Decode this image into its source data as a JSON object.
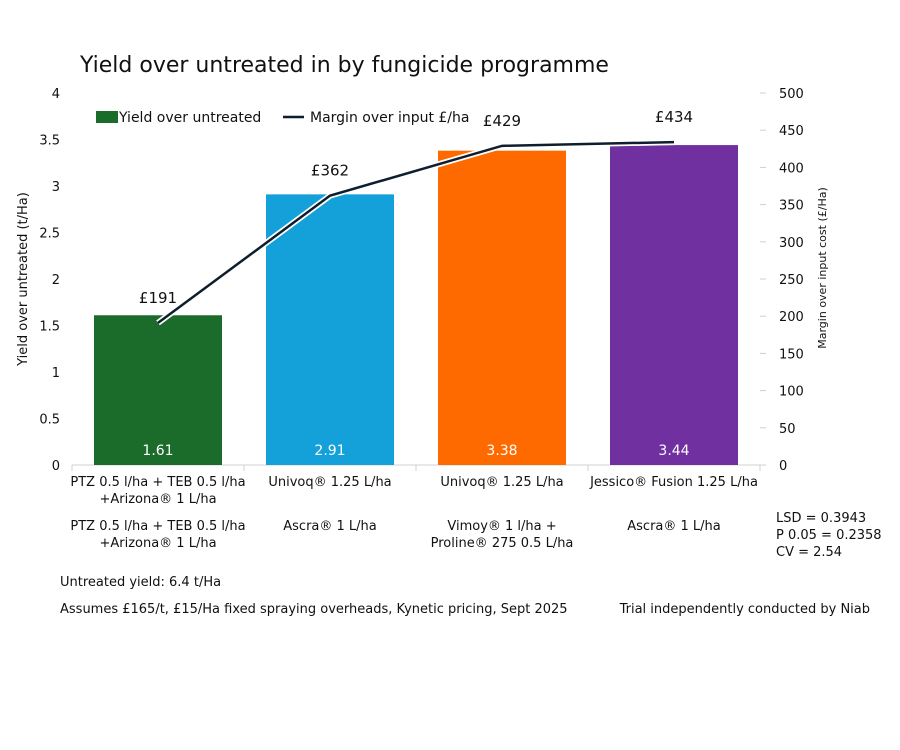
{
  "chart_data": {
    "type": "bar+line",
    "title": "Yield over untreated in by fungicide programme",
    "ylabel": "Yield over untreated (t/Ha)",
    "y2label": "Margin over input cost (£/Ha)",
    "ylim": [
      0,
      4
    ],
    "y2lim": [
      0,
      500
    ],
    "yticks": [
      "0",
      "0.5",
      "1",
      "1.5",
      "2",
      "2.5",
      "3",
      "3.5",
      "4"
    ],
    "y2ticks": [
      "0",
      "50",
      "100",
      "150",
      "200",
      "250",
      "300",
      "350",
      "400",
      "450",
      "500"
    ],
    "categories": [
      {
        "line1": "PTZ 0.5 l/ha + TEB 0.5 l/ha",
        "line2": "+Arizona® 1 L/ha",
        "line3": "PTZ 0.5 l/ha + TEB 0.5 l/ha",
        "line4": "+Arizona® 1 L/ha"
      },
      {
        "line1": "Univoq® 1.25 L/ha",
        "line2": "",
        "line3": "Ascra®  1 L/ha",
        "line4": ""
      },
      {
        "line1": "Univoq® 1.25 L/ha",
        "line2": "",
        "line3": "Vimoy® 1 l/ha +",
        "line4": "Proline® 275 0.5 L/ha"
      },
      {
        "line1": "Jessico® Fusion 1.25 L/ha",
        "line2": "",
        "line3": "Ascra®  1 L/ha",
        "line4": ""
      }
    ],
    "series": [
      {
        "name": "Yield over untreated",
        "type": "bar",
        "axis": "left",
        "values": [
          1.61,
          2.91,
          3.38,
          3.44
        ],
        "labels": [
          "1.61",
          "2.91",
          "3.38",
          "3.44"
        ],
        "colors": [
          "#1b6b2b",
          "#14a0d9",
          "#ff6a00",
          "#7030a0"
        ]
      },
      {
        "name": "Margin over input £/ha",
        "type": "line",
        "axis": "right",
        "values": [
          191,
          362,
          429,
          434
        ],
        "labels": [
          "£191",
          "£362",
          "£429",
          "£434"
        ],
        "color": "#0f1e2e"
      }
    ],
    "legend": "top-left",
    "grid": false
  },
  "stats": [
    "LSD = 0.3943",
    "P 0.05 = 0.2358",
    "CV = 2.54"
  ],
  "notes": {
    "untreated": "Untreated yield: 6.4 t/Ha",
    "assumptions": "Assumes £165/t, £15/Ha fixed spraying overheads, Kynetic pricing, Sept 2025",
    "trial": "Trial independently conducted by Niab"
  }
}
